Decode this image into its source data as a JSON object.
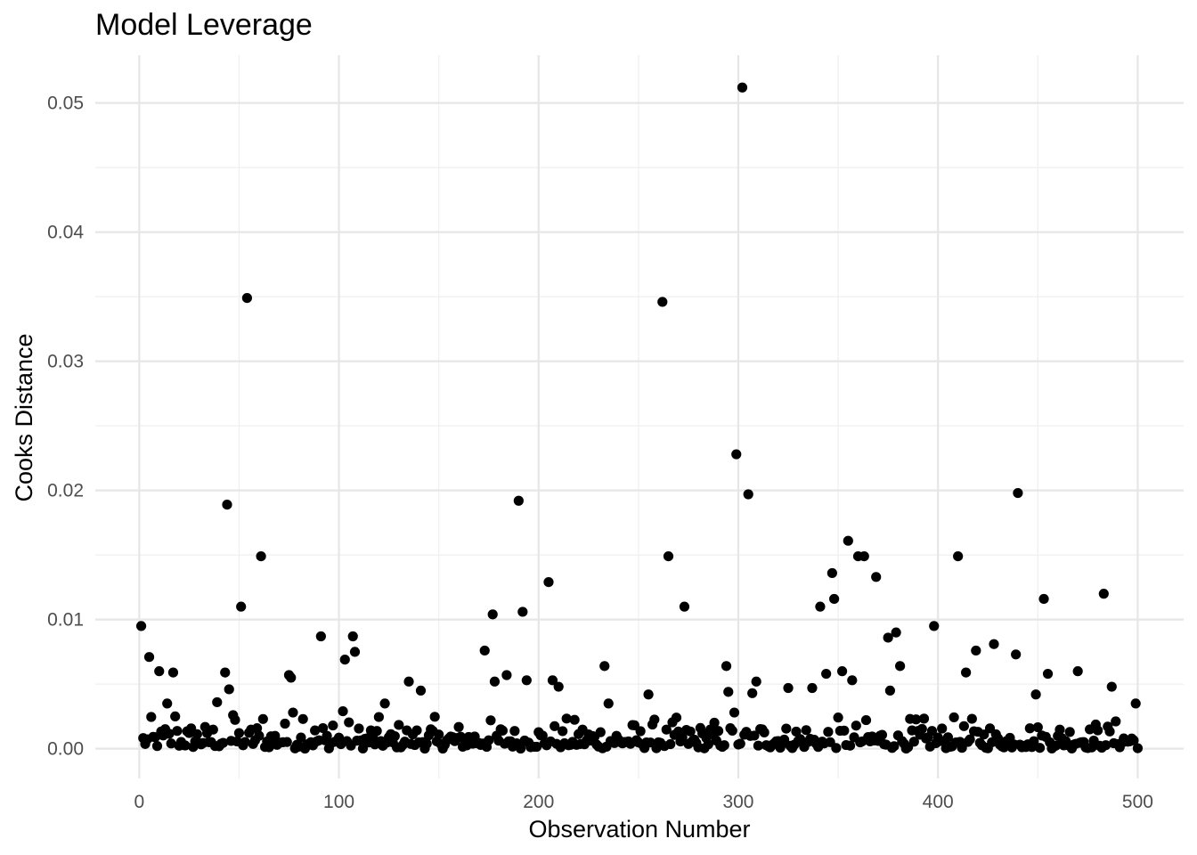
{
  "chart_data": {
    "type": "scatter",
    "title": "Model Leverage",
    "xlabel": "Observation Number",
    "ylabel": "Cooks Distance",
    "xlim": [
      -22,
      523
    ],
    "ylim": [
      -0.0023,
      0.0537
    ],
    "x_ticks": [
      0,
      100,
      200,
      300,
      400,
      500
    ],
    "x_tick_labels": [
      "0",
      "100",
      "200",
      "300",
      "400",
      "500"
    ],
    "y_ticks": [
      0.0,
      0.01,
      0.02,
      0.03,
      0.04,
      0.05
    ],
    "y_tick_labels": [
      "0.00",
      "0.01",
      "0.02",
      "0.03",
      "0.04",
      "0.05"
    ],
    "grid": true,
    "theme": "minimal",
    "point_color": "#000000",
    "highlighted_points": [
      {
        "x": 1,
        "y": 0.0095
      },
      {
        "x": 5,
        "y": 0.0071
      },
      {
        "x": 10,
        "y": 0.006
      },
      {
        "x": 14,
        "y": 0.0035
      },
      {
        "x": 17,
        "y": 0.0059
      },
      {
        "x": 18,
        "y": 0.0025
      },
      {
        "x": 39,
        "y": 0.0036
      },
      {
        "x": 43,
        "y": 0.0059
      },
      {
        "x": 44,
        "y": 0.0189
      },
      {
        "x": 45,
        "y": 0.0046
      },
      {
        "x": 47,
        "y": 0.0026
      },
      {
        "x": 51,
        "y": 0.011
      },
      {
        "x": 54,
        "y": 0.0349
      },
      {
        "x": 61,
        "y": 0.0149
      },
      {
        "x": 62,
        "y": 0.0023
      },
      {
        "x": 75,
        "y": 0.0057
      },
      {
        "x": 76,
        "y": 0.0055
      },
      {
        "x": 77,
        "y": 0.0028
      },
      {
        "x": 82,
        "y": 0.0023
      },
      {
        "x": 91,
        "y": 0.0087
      },
      {
        "x": 97,
        "y": 0.0018
      },
      {
        "x": 102,
        "y": 0.0029
      },
      {
        "x": 103,
        "y": 0.0069
      },
      {
        "x": 107,
        "y": 0.0087
      },
      {
        "x": 108,
        "y": 0.0075
      },
      {
        "x": 123,
        "y": 0.0035
      },
      {
        "x": 135,
        "y": 0.0052
      },
      {
        "x": 141,
        "y": 0.0045
      },
      {
        "x": 173,
        "y": 0.0076
      },
      {
        "x": 177,
        "y": 0.0104
      },
      {
        "x": 178,
        "y": 0.0052
      },
      {
        "x": 184,
        "y": 0.0057
      },
      {
        "x": 190,
        "y": 0.0192
      },
      {
        "x": 192,
        "y": 0.0106
      },
      {
        "x": 194,
        "y": 0.0053
      },
      {
        "x": 205,
        "y": 0.0129
      },
      {
        "x": 207,
        "y": 0.0053
      },
      {
        "x": 210,
        "y": 0.0048
      },
      {
        "x": 233,
        "y": 0.0064
      },
      {
        "x": 235,
        "y": 0.0035
      },
      {
        "x": 255,
        "y": 0.0042
      },
      {
        "x": 262,
        "y": 0.0346
      },
      {
        "x": 265,
        "y": 0.0149
      },
      {
        "x": 273,
        "y": 0.011
      },
      {
        "x": 294,
        "y": 0.0064
      },
      {
        "x": 295,
        "y": 0.0044
      },
      {
        "x": 298,
        "y": 0.0028
      },
      {
        "x": 299,
        "y": 0.0228
      },
      {
        "x": 302,
        "y": 0.0512
      },
      {
        "x": 305,
        "y": 0.0197
      },
      {
        "x": 307,
        "y": 0.0043
      },
      {
        "x": 309,
        "y": 0.0052
      },
      {
        "x": 325,
        "y": 0.0047
      },
      {
        "x": 337,
        "y": 0.0047
      },
      {
        "x": 341,
        "y": 0.011
      },
      {
        "x": 344,
        "y": 0.0058
      },
      {
        "x": 347,
        "y": 0.0136
      },
      {
        "x": 348,
        "y": 0.0116
      },
      {
        "x": 352,
        "y": 0.006
      },
      {
        "x": 355,
        "y": 0.0161
      },
      {
        "x": 357,
        "y": 0.0053
      },
      {
        "x": 360,
        "y": 0.0149
      },
      {
        "x": 363,
        "y": 0.0149
      },
      {
        "x": 369,
        "y": 0.0133
      },
      {
        "x": 375,
        "y": 0.0086
      },
      {
        "x": 376,
        "y": 0.0045
      },
      {
        "x": 379,
        "y": 0.009
      },
      {
        "x": 381,
        "y": 0.0064
      },
      {
        "x": 398,
        "y": 0.0095
      },
      {
        "x": 410,
        "y": 0.0149
      },
      {
        "x": 414,
        "y": 0.0059
      },
      {
        "x": 419,
        "y": 0.0076
      },
      {
        "x": 428,
        "y": 0.0081
      },
      {
        "x": 439,
        "y": 0.0073
      },
      {
        "x": 440,
        "y": 0.0198
      },
      {
        "x": 449,
        "y": 0.0042
      },
      {
        "x": 453,
        "y": 0.0116
      },
      {
        "x": 455,
        "y": 0.0058
      },
      {
        "x": 470,
        "y": 0.006
      },
      {
        "x": 483,
        "y": 0.012
      },
      {
        "x": 487,
        "y": 0.0048
      },
      {
        "x": 499,
        "y": 0.0035
      }
    ],
    "background_points_estimated": {
      "x_range": [
        1,
        500
      ],
      "count": 500,
      "y_range": [
        0.0,
        0.0025
      ],
      "typical": 0.0004
    }
  }
}
